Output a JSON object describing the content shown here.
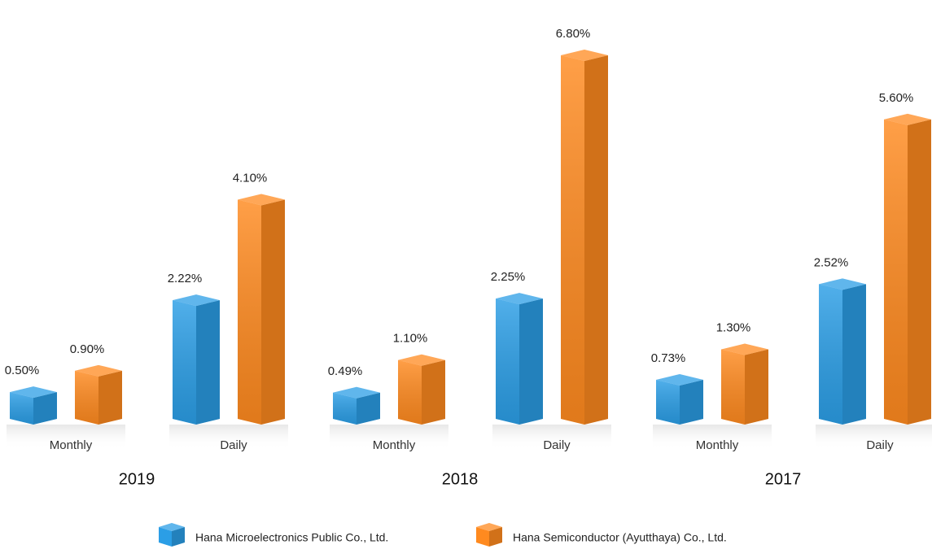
{
  "chart_data": {
    "type": "bar",
    "categories": [
      "Monthly",
      "Daily",
      "Monthly",
      "Daily",
      "Monthly",
      "Daily"
    ],
    "groups": [
      "2019",
      "2018",
      "2017"
    ],
    "series": [
      {
        "name": "Hana Microelectronics Public Co., Ltd.",
        "color": "#2b9ee6",
        "values": [
          0.5,
          2.22,
          0.49,
          2.25,
          0.73,
          2.52
        ],
        "value_labels": [
          "0.50%",
          "2.22%",
          "0.49%",
          "2.25%",
          "0.73%",
          "2.52%"
        ]
      },
      {
        "name": "Hana Semiconductor (Ayutthaya) Co., Ltd.",
        "color": "#ff8a1f",
        "values": [
          0.9,
          4.1,
          1.1,
          6.8,
          1.3,
          5.6
        ],
        "value_labels": [
          "0.90%",
          "4.10%",
          "1.10%",
          "6.80%",
          "1.30%",
          "5.60%"
        ]
      }
    ]
  }
}
